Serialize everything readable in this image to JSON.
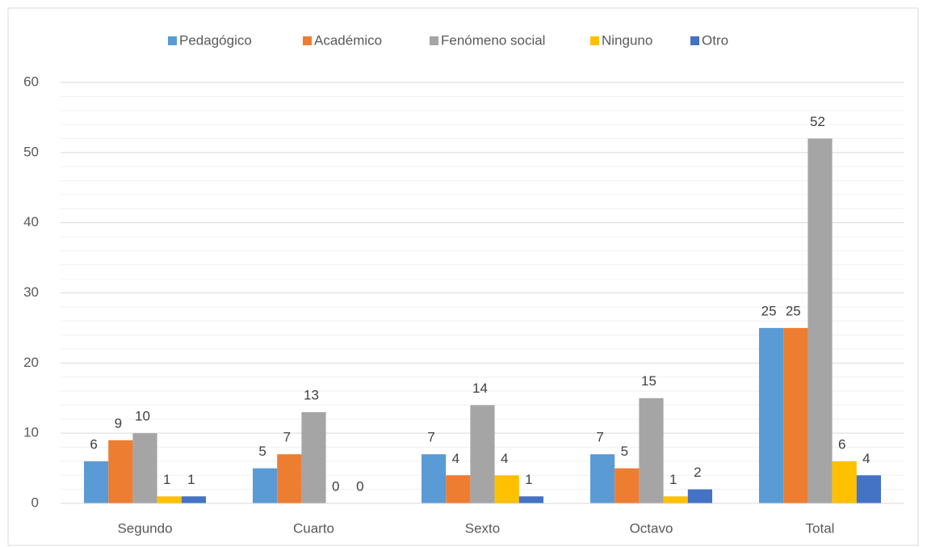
{
  "chart_data": {
    "type": "bar",
    "categories": [
      "Segundo",
      "Cuarto",
      "Sexto",
      "Octavo",
      "Total"
    ],
    "series": [
      {
        "name": "Pedagógico",
        "color": "#5b9bd5",
        "values": [
          6,
          5,
          7,
          7,
          25
        ]
      },
      {
        "name": "Académico",
        "color": "#ed7d31",
        "values": [
          9,
          7,
          4,
          5,
          25
        ]
      },
      {
        "name": "Fenómeno social",
        "color": "#a5a5a5",
        "values": [
          10,
          13,
          14,
          15,
          52
        ]
      },
      {
        "name": "Ninguno",
        "color": "#ffc000",
        "values": [
          1,
          0,
          4,
          1,
          6
        ]
      },
      {
        "name": "Otro",
        "color": "#4472c4",
        "values": [
          1,
          0,
          1,
          2,
          4
        ]
      }
    ],
    "ylim": [
      0,
      60
    ],
    "yticks": [
      0,
      10,
      20,
      30,
      40,
      50,
      60
    ],
    "yminorticks": [
      2,
      4,
      6,
      8,
      12,
      14,
      16,
      18,
      22,
      24,
      26,
      28,
      32,
      34,
      36,
      38,
      42,
      44,
      46,
      48,
      52,
      54,
      56,
      58
    ],
    "grid": true,
    "legend": "top"
  }
}
